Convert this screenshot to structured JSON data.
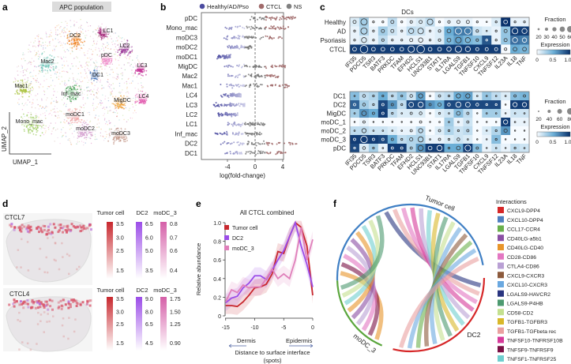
{
  "panel_labels": {
    "a": "a",
    "b": "b",
    "c": "c",
    "d": "d",
    "e": "e",
    "f": "f"
  },
  "chart_data": [
    {
      "type": "scatter",
      "title": "APC population",
      "xlabel": "UMAP_1",
      "ylabel": "UMAP_2",
      "clusters": [
        {
          "label": "DC2",
          "color": "#f07f1b"
        },
        {
          "label": "LC1",
          "color": "#a8327f"
        },
        {
          "label": "LC2",
          "color": "#9e3f9b"
        },
        {
          "label": "pDC",
          "color": "#ef8fcb"
        },
        {
          "label": "Mac2",
          "color": "#6cc4b6"
        },
        {
          "label": "LC3",
          "color": "#c8389a"
        },
        {
          "label": "DC1",
          "color": "#3d6fb6"
        },
        {
          "label": "Mac1",
          "color": "#a9c23d"
        },
        {
          "label": "Inf_mac",
          "color": "#3a9a4a"
        },
        {
          "label": "LC4",
          "color": "#e25fb0"
        },
        {
          "label": "MigDC",
          "color": "#f0a33b"
        },
        {
          "label": "moDC1",
          "color": "#f4a6a6"
        },
        {
          "label": "Mono_mac",
          "color": "#9ccc5f"
        },
        {
          "label": "moDC2",
          "color": "#d6a0d0"
        },
        {
          "label": "moDC3",
          "color": "#c19182"
        }
      ]
    },
    {
      "type": "scatter",
      "xlabel": "log(fold-change)",
      "categories": [
        "pDC",
        "Mono_mac",
        "moDC3",
        "moDC2",
        "moDC1",
        "MigDC",
        "Mac2",
        "Mac1",
        "LC4",
        "LC3",
        "LC2",
        "LC1",
        "Inf_mac",
        "DC2",
        "DC1"
      ],
      "ranges": [
        [
          -1,
          6
        ],
        [
          -4.5,
          5
        ],
        [
          -4.5,
          4
        ],
        [
          -4,
          -0.5
        ],
        [
          -5.5,
          -3.5
        ],
        [
          -4.5,
          4.5
        ],
        [
          -4,
          3.5
        ],
        [
          -5,
          5
        ],
        [
          -5,
          -2
        ],
        [
          -6,
          -1.5
        ],
        [
          -5.5,
          -2.5
        ],
        [
          -4,
          1.5
        ],
        [
          -6,
          1
        ],
        [
          -5,
          6
        ],
        [
          -4.5,
          4.5
        ]
      ],
      "xticks": [
        "-4",
        "0",
        "4"
      ],
      "xlim": [
        -7.5,
        4
      ],
      "legend": [
        {
          "label": "Healthy/AD/Pso",
          "color": "#4b4ba0"
        },
        {
          "label": "CTCL",
          "color": "#a06a6a"
        },
        {
          "label": "NS",
          "color": "#808080"
        }
      ]
    },
    {
      "type": "heatmap",
      "title": "DCs",
      "rows": [
        "Healthy",
        "AD",
        "Psoriasis",
        "CTCL"
      ],
      "columns": [
        "IFI35",
        "PDCD5",
        "TSR3",
        "BATF3",
        "PRKDC",
        "TFAM",
        "EFHD2",
        "HCLS1",
        "UNC93B1",
        "STAT1",
        "IL17RA",
        "LGALS9",
        "TGFB1",
        "TNFSF10",
        "CXCL9",
        "TNFSF12",
        "IL23A",
        "IL18",
        "TNF"
      ],
      "expression": [
        [
          0.1,
          0.3,
          0,
          0,
          0.2,
          0,
          0.05,
          0.1,
          0.2,
          0,
          0.05,
          0.05,
          0.05,
          0,
          0,
          0.1,
          1.0,
          0.05,
          0.05
        ],
        [
          0.05,
          0.25,
          0.05,
          0.3,
          0.15,
          0.05,
          0.2,
          0.15,
          0.05,
          0.1,
          0.5,
          0.7,
          0.7,
          0.15,
          0.1,
          0.05,
          0.35,
          0.95,
          0.95
        ],
        [
          0.05,
          0.1,
          0.05,
          0.2,
          0.05,
          0.05,
          0.05,
          0.05,
          0.05,
          0.1,
          0.45,
          0.55,
          0.45,
          0.4,
          0.85,
          0.05,
          0.35,
          0.75,
          0.7
        ],
        [
          0.95,
          0.95,
          0.95,
          0.95,
          0.95,
          0.95,
          0.95,
          0.95,
          0.95,
          0.95,
          0.95,
          0.95,
          0.95,
          0.95,
          0.95,
          0.95,
          0,
          0.5,
          0.45
        ]
      ],
      "fraction": [
        [
          25,
          50,
          15,
          15,
          25,
          15,
          20,
          25,
          45,
          15,
          20,
          25,
          25,
          15,
          10,
          15,
          30,
          15,
          15
        ],
        [
          15,
          50,
          15,
          25,
          25,
          15,
          40,
          45,
          15,
          20,
          30,
          50,
          50,
          20,
          10,
          15,
          25,
          45,
          40
        ],
        [
          15,
          40,
          15,
          20,
          15,
          15,
          25,
          35,
          15,
          20,
          30,
          45,
          40,
          20,
          15,
          15,
          25,
          40,
          35
        ],
        [
          30,
          60,
          30,
          30,
          30,
          30,
          50,
          60,
          30,
          30,
          35,
          50,
          40,
          25,
          25,
          25,
          20,
          30,
          30
        ]
      ],
      "fraction_title": "Fraction",
      "fraction_ticks": [
        20,
        30,
        40,
        50,
        60
      ],
      "expression_title": "Expression",
      "expression_ticks": [
        "0",
        "0.5",
        "1.0"
      ]
    },
    {
      "type": "heatmap",
      "rows": [
        "DC1",
        "DC2",
        "MigDC",
        "moDC_1",
        "moDC_2",
        "moDC_3",
        "pDC"
      ],
      "columns": [
        "IFI35",
        "PDCD5",
        "TSR3",
        "BATF3",
        "PRKDC",
        "TFAM",
        "EFHD2",
        "HCLS1",
        "UNC93B1",
        "STAT1",
        "IL17RA",
        "LGALS9",
        "TGFB1",
        "TNFSF10",
        "CXCL9",
        "TNFSF12",
        "IL23A",
        "IL18",
        "TNF"
      ],
      "expression": [
        [
          0.4,
          0.2,
          0.25,
          0.5,
          0.2,
          0.35,
          0.15,
          0.55,
          0,
          0.15,
          0.2,
          0.5,
          0.55,
          0.1,
          0.35,
          0.2,
          0.1,
          0.4,
          0.45
        ],
        [
          0.8,
          0.3,
          0.2,
          0.9,
          0.6,
          0.2,
          0.9,
          0.9,
          0.6,
          0.5,
          0.9,
          0.9,
          0.9,
          0.9,
          0.9,
          0.9,
          0,
          0.95,
          0.95
        ],
        [
          0.3,
          0.6,
          0.5,
          0.95,
          0.2,
          0.1,
          0.1,
          0.1,
          0,
          0.1,
          0.15,
          0.4,
          0.2,
          0,
          0.3,
          0.3,
          0.05,
          0.15,
          0.15
        ],
        [
          0,
          0.05,
          0,
          0,
          0,
          0,
          0,
          0,
          0,
          0,
          0.3,
          0.05,
          0.15,
          0,
          0,
          0,
          0.95,
          0.05,
          0.05
        ],
        [
          0.2,
          0.2,
          0.15,
          0.15,
          0.1,
          0.05,
          0.05,
          0.2,
          0,
          0.1,
          0.25,
          0.15,
          0.2,
          0,
          0.1,
          0.25,
          0.6,
          0,
          0
        ],
        [
          0.95,
          0.95,
          0.95,
          0.9,
          0.5,
          0.2,
          0.25,
          0.25,
          0.05,
          0.05,
          0.1,
          0.15,
          0.1,
          0,
          0.05,
          0.4,
          0,
          0,
          0
        ],
        [
          0.9,
          0.1,
          0.3,
          0.05,
          0.95,
          0.95,
          0.25,
          0.6,
          0.95,
          0.95,
          0.5,
          0.5,
          0.95,
          0.4,
          0.05,
          0.15,
          0.05,
          0.2,
          0.15
        ]
      ],
      "fraction": [
        [
          15,
          30,
          20,
          20,
          20,
          20,
          30,
          45,
          15,
          25,
          20,
          45,
          45,
          15,
          15,
          15,
          15,
          25,
          25
        ],
        [
          25,
          30,
          20,
          25,
          25,
          20,
          50,
          55,
          25,
          35,
          30,
          55,
          50,
          30,
          20,
          20,
          10,
          45,
          45
        ],
        [
          15,
          50,
          25,
          25,
          20,
          15,
          25,
          30,
          10,
          20,
          15,
          40,
          25,
          10,
          15,
          15,
          10,
          15,
          15
        ],
        [
          10,
          25,
          10,
          10,
          10,
          10,
          15,
          25,
          10,
          15,
          15,
          15,
          25,
          10,
          10,
          10,
          45,
          15,
          15
        ],
        [
          15,
          45,
          15,
          15,
          15,
          15,
          25,
          45,
          10,
          25,
          20,
          20,
          25,
          10,
          10,
          20,
          35,
          10,
          10
        ],
        [
          25,
          70,
          25,
          25,
          25,
          20,
          35,
          55,
          15,
          25,
          20,
          30,
          15,
          10,
          10,
          20,
          10,
          10,
          10
        ],
        [
          20,
          30,
          20,
          15,
          25,
          25,
          25,
          55,
          40,
          55,
          20,
          40,
          60,
          25,
          10,
          15,
          10,
          20,
          15
        ]
      ],
      "fraction_title": "Fraction",
      "fraction_ticks": [
        20,
        40,
        60,
        80
      ],
      "expression_title": "Expression",
      "expression_ticks": [
        "0",
        "0.5",
        "1.0"
      ]
    },
    {
      "type": "heatmap",
      "samples": [
        {
          "name": "CTCL7",
          "scales": [
            {
              "label": "Tumor cell",
              "color": "#c8282e",
              "ticks": [
                "3.5",
                "3.0",
                "2.5",
                "1.5"
              ]
            },
            {
              "label": "DC2",
              "color": "#9b4de8",
              "ticks": [
                "6.5",
                "6.0",
                "5.0",
                "3.5"
              ]
            },
            {
              "label": "moDC_3",
              "color": "#d55fa8",
              "ticks": [
                "0.8",
                "0.7",
                "0.6",
                "0.4"
              ]
            }
          ]
        },
        {
          "name": "CTCL4",
          "scales": [
            {
              "label": "Tumor cell",
              "color": "#c8282e",
              "ticks": [
                "3.5",
                "3.0",
                "2.5",
                "1.5"
              ]
            },
            {
              "label": "DC2",
              "color": "#9b4de8",
              "ticks": [
                "9.0",
                "8.0",
                "6.5",
                "4.5"
              ]
            },
            {
              "label": "moDC_3",
              "color": "#d55fa8",
              "ticks": [
                "1.75",
                "1.50",
                "1.25",
                "0.90"
              ]
            }
          ]
        }
      ]
    },
    {
      "type": "line",
      "title": "All CTCL combined",
      "xlabel": "Distance to surface interface",
      "xlabel2": "(spots)",
      "ylabel": "Relative abundance",
      "left_annotation": "Dermis",
      "right_annotation": "Epidermis",
      "x": [
        -15,
        -14,
        -13,
        -12,
        -11,
        -10,
        -9,
        -8,
        -7,
        -6,
        -5,
        -4,
        -3,
        -2,
        -1,
        0
      ],
      "xlim": [
        -16,
        0
      ],
      "ylim": [
        0,
        1
      ],
      "xticks": [
        "-15",
        "-10",
        "-5",
        "0"
      ],
      "yticks": [
        "0",
        "0.2",
        "0.4",
        "0.6",
        "0.8",
        "1.0"
      ],
      "series": [
        {
          "name": "Tumor cell",
          "color": "#c8282e",
          "values": [
            0.11,
            0.11,
            0.1,
            0.15,
            0.22,
            0.3,
            0.31,
            0.34,
            0.45,
            0.69,
            0.67,
            0.85,
            1.0,
            0.95,
            0.75,
            0.22
          ]
        },
        {
          "name": "DC2",
          "color": "#9b4de8",
          "values": [
            0.14,
            0.19,
            0.21,
            0.3,
            0.35,
            0.43,
            0.43,
            0.39,
            0.49,
            0.6,
            0.7,
            0.85,
            1.0,
            0.75,
            0.55,
            0.31
          ]
        },
        {
          "name": "moDC_3",
          "color": "#df7fba",
          "values": [
            0.15,
            0.28,
            0.25,
            0.33,
            0.3,
            0.31,
            0.31,
            0.4,
            0.5,
            0.4,
            0.45,
            0.4,
            0.6,
            0.95,
            0.6,
            0.82
          ]
        }
      ]
    },
    {
      "type": "chord",
      "legend_title": "Interactions",
      "groups": [
        {
          "name": "Tumor cell",
          "color": "#3f7fc4"
        },
        {
          "name": "DC2",
          "color": "#d62728"
        },
        {
          "name": "moDC_3",
          "color": "#5aa63c"
        }
      ],
      "interactions": [
        {
          "label": "CXCL9-DPP4",
          "color": "#d62728"
        },
        {
          "label": "CXCL10-DPP4",
          "color": "#4f7fbf"
        },
        {
          "label": "CCL17-CCR4",
          "color": "#6ab04c"
        },
        {
          "label": "CD40LG-a5b1",
          "color": "#8a4fa3"
        },
        {
          "label": "CD40LG-CD40",
          "color": "#e8952a"
        },
        {
          "label": "CD28-CD86",
          "color": "#e377c2"
        },
        {
          "label": "CTLA4-CD86",
          "color": "#b9a0d4"
        },
        {
          "label": "CXCL9-CXCR3",
          "color": "#8c5a3c"
        },
        {
          "label": "CXCL10-CXCR3",
          "color": "#6aa8e0"
        },
        {
          "label": "LGALS9-HAVCR2",
          "color": "#2a3580"
        },
        {
          "label": "LGALS9-P4HB",
          "color": "#4d9a70"
        },
        {
          "label": "CD58-CD2",
          "color": "#c4e08f"
        },
        {
          "label": "TGFB1-TGFBR3",
          "color": "#d9b82a"
        },
        {
          "label": "TGFB1-TGFbeta rec",
          "color": "#eaa0a0"
        },
        {
          "label": "TNFSF10-TNFRSF10B",
          "color": "#d63a9a"
        },
        {
          "label": "TNFSF9-TNFRSF9",
          "color": "#7a1044"
        },
        {
          "label": "TNFSF1-TNFRSF25",
          "color": "#6fcfcf"
        }
      ],
      "links": [
        {
          "i": 4,
          "from": "moDC_3",
          "to": "Tumor cell"
        },
        {
          "i": 15,
          "from": "Tumor cell",
          "to": "moDC_3"
        },
        {
          "i": 5,
          "from": "Tumor cell",
          "to": "moDC_3"
        },
        {
          "i": 6,
          "from": "Tumor cell",
          "to": "moDC_3"
        },
        {
          "i": 3,
          "from": "Tumor cell",
          "to": "moDC_3"
        },
        {
          "i": 4,
          "from": "Tumor cell",
          "to": "moDC_3"
        },
        {
          "i": 9,
          "from": "Tumor cell",
          "to": "DC2"
        },
        {
          "i": 13,
          "from": "Tumor cell",
          "to": "DC2"
        },
        {
          "i": 5,
          "from": "Tumor cell",
          "to": "DC2"
        },
        {
          "i": 14,
          "from": "Tumor cell",
          "to": "DC2"
        },
        {
          "i": 6,
          "from": "Tumor cell",
          "to": "DC2"
        },
        {
          "i": 16,
          "from": "Tumor cell",
          "to": "moDC_3"
        },
        {
          "i": 11,
          "from": "Tumor cell",
          "to": "moDC_3"
        },
        {
          "i": 10,
          "from": "Tumor cell",
          "to": "moDC_3"
        },
        {
          "i": 16,
          "from": "Tumor cell",
          "to": "DC2"
        },
        {
          "i": 12,
          "from": "Tumor cell",
          "to": "DC2"
        },
        {
          "i": 10,
          "from": "Tumor cell",
          "to": "DC2"
        },
        {
          "i": 11,
          "from": "Tumor cell",
          "to": "DC2"
        },
        {
          "i": 8,
          "from": "Tumor cell",
          "to": "DC2"
        },
        {
          "i": 7,
          "from": "Tumor cell",
          "to": "DC2"
        },
        {
          "i": 2,
          "from": "Tumor cell",
          "to": "DC2"
        },
        {
          "i": 8,
          "from": "Tumor cell",
          "to": "DC2"
        },
        {
          "i": 13,
          "from": "Tumor cell",
          "to": "DC2"
        }
      ]
    }
  ]
}
